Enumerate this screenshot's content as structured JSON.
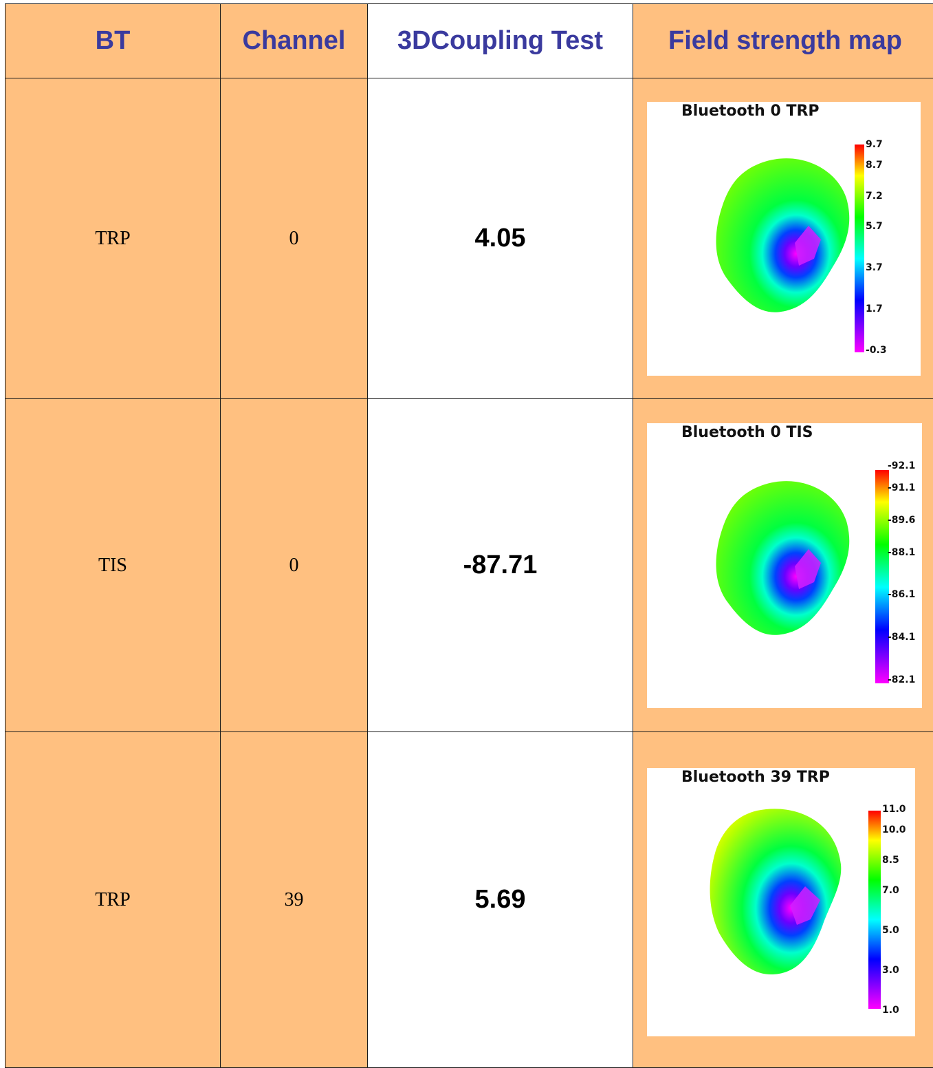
{
  "header": {
    "col1": "BT",
    "col2": "Channel",
    "col3": "3DCoupling Test",
    "col4": "Field strength map"
  },
  "rows": [
    {
      "type": "TRP",
      "channel": "0",
      "result": "4.05",
      "map": {
        "title": "Bluetooth 0 TRP",
        "scale_labels": [
          "9.7",
          "8.7",
          "7.2",
          "5.7",
          "3.7",
          "1.7",
          "-0.3"
        ]
      }
    },
    {
      "type": "TIS",
      "channel": "0",
      "result": "-87.71",
      "map": {
        "title": "Bluetooth 0 TIS",
        "scale_labels": [
          "-92.1",
          "-91.1",
          "-89.6",
          "-88.1",
          "-86.1",
          "-84.1",
          "-82.1"
        ]
      }
    },
    {
      "type": "TRP",
      "channel": "39",
      "result": "5.69",
      "map": {
        "title": "Bluetooth 39 TRP",
        "scale_labels": [
          "11.0",
          "10.0",
          "8.5",
          "7.0",
          "5.0",
          "3.0",
          "1.0"
        ]
      }
    }
  ],
  "colors": {
    "cell_fill": "#ffc080",
    "header_text": "#3a3a9e",
    "scale_stops": [
      "#ff0000",
      "#ffff00",
      "#00ff00",
      "#00ffff",
      "#0000ff",
      "#ff00ff"
    ]
  }
}
